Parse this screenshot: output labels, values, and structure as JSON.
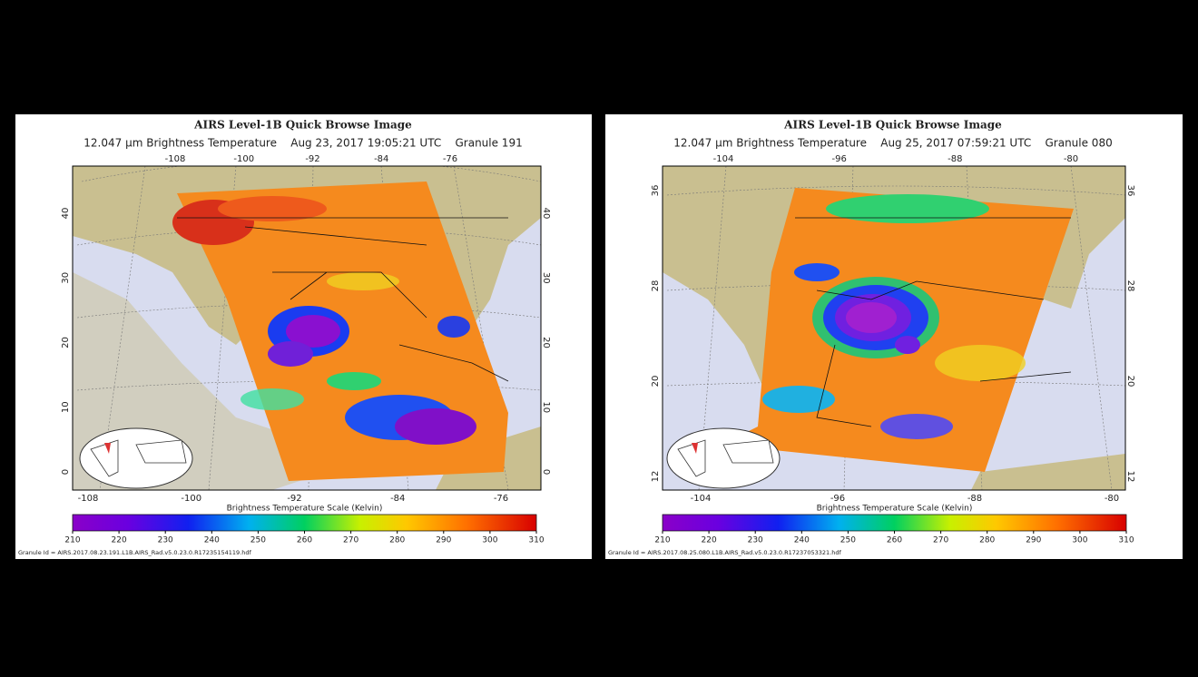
{
  "panels": [
    {
      "title": "AIRS Level-1B Quick Browse Image",
      "subtitle": "12.047 μm Brightness Temperature    Aug 23, 2017 19:05:21 UTC    Granule 191",
      "lon_ticks": [
        -108,
        -100,
        -92,
        -84,
        -76
      ],
      "lat_ticks": [
        0,
        10,
        20,
        30,
        40
      ],
      "scale_label": "Brightness Temperature Scale (Kelvin)",
      "scale_lim": [
        210,
        310
      ],
      "scale_ticks": [
        210,
        220,
        230,
        240,
        250,
        260,
        270,
        280,
        290,
        300,
        310
      ],
      "granule_id": "Granule Id = AIRS.2017.08.23.191.L1B.AIRS_Rad.v5.0.23.0.R17235154119.hdf"
    },
    {
      "title": "AIRS Level-1B Quick Browse Image",
      "subtitle": "12.047 μm Brightness Temperature    Aug 25, 2017 07:59:21 UTC    Granule 080",
      "lon_ticks": [
        -104,
        -96,
        -88,
        -80
      ],
      "lat_ticks": [
        12,
        20,
        28,
        36
      ],
      "scale_label": "Brightness Temperature Scale (Kelvin)",
      "scale_lim": [
        210,
        310
      ],
      "scale_ticks": [
        210,
        220,
        230,
        240,
        250,
        260,
        270,
        280,
        290,
        300,
        310
      ],
      "granule_id": "Granule Id = AIRS.2017.08.25.080.L1B.AIRS_Rad.v5.0.23.0.R17237053321.hdf"
    }
  ]
}
